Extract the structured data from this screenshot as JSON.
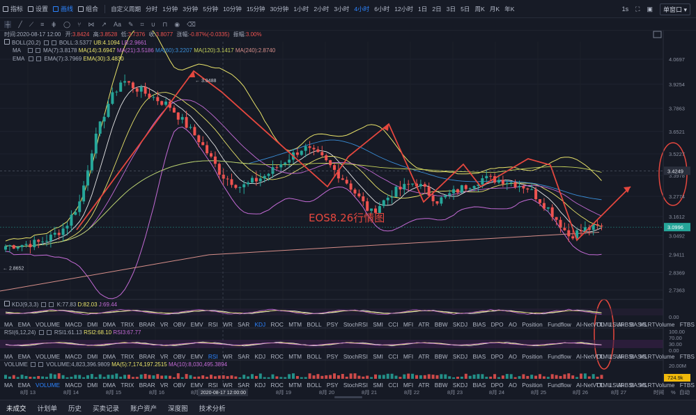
{
  "toolbar": {
    "tools": [
      {
        "label": "指标",
        "icon": "indicator-icon"
      },
      {
        "label": "设置",
        "icon": "gear-icon"
      },
      {
        "label": "画线",
        "icon": "pen-icon",
        "active": true
      },
      {
        "label": "组合",
        "icon": "layout-icon"
      }
    ],
    "periods": [
      "自定义周期",
      "分时",
      "1分钟",
      "3分钟",
      "5分钟",
      "10分钟",
      "15分钟",
      "30分钟",
      "1小时",
      "2小时",
      "3小时",
      "4小时",
      "6小时",
      "12小时",
      "1日",
      "2日",
      "3日",
      "5日",
      "周K",
      "月K",
      "年K"
    ],
    "active_period": "4小时",
    "right": {
      "interval": "1s",
      "layout": "单窗口"
    }
  },
  "drawing_tools": [
    "cursor",
    "line",
    "ray",
    "channel",
    "fib",
    "circle",
    "fork",
    "pattern",
    "arrow",
    "text",
    "brush",
    "ruler",
    "magnet",
    "lock",
    "eye",
    "trash"
  ],
  "info": {
    "time": "时间:2020-08-17 12:00",
    "open_label": "开:",
    "open": "3.8424",
    "high_label": "高:",
    "high": "3.8528",
    "low_label": "低:",
    "low": "3.7376",
    "close_label": "收:",
    "close": "3.8077",
    "change_label": "涨幅:",
    "change": "-0.87%(-0.0335)",
    "amp_label": "振幅:",
    "amp": "3.00%"
  },
  "legends": {
    "boll": {
      "name": "BOLL(20,2)",
      "v1": "BOLL:3.5377",
      "v2": "UB:4.1094",
      "v3": "LB:2.9661"
    },
    "ma": {
      "name": "MA",
      "v1": "MA(7):3.8178",
      "v2": "MA(14):3.6947",
      "v3": "MA(21):3.5186",
      "v4": "MA(60):3.2207",
      "v5": "MA(120):3.1417",
      "v6": "MA(240):2.8740"
    },
    "ema": {
      "name": "EMA",
      "v1": "EMA(7):3.7969",
      "v2": "EMA(30):3.4830"
    },
    "kdj": {
      "name": "KDJ(9,3,3)",
      "v1": "K:77.83",
      "v2": "D:82.03",
      "v3": "J:69.44"
    },
    "rsi": {
      "name": "RSI(6,12,24)",
      "v1": "RSI1:61.13",
      "v2": "RSI2:68.10",
      "v3": "RSI3:67.77"
    },
    "volume": {
      "name": "VOLUME",
      "v1": "VOLUME:4,823,396.9809",
      "v2": "MA(5):7,174,197.2515",
      "v3": "MA(10):8,030,495.3894"
    }
  },
  "price_axis": [
    "4.0697",
    "3.9254",
    "3.7863",
    "3.6521",
    "3.5227",
    "3.3978",
    "3.2774",
    "3.1612",
    "3.0492",
    "2.9411",
    "2.8369",
    "2.7363"
  ],
  "price_range": [
    2.69,
    4.17
  ],
  "current_price": "3.0996",
  "crosshair_price": "3.4249",
  "max_label": "3.9488",
  "min_label": "2.8652",
  "annotation": "EOS8.26行情图",
  "kdj_axis": [
    "0.00"
  ],
  "rsi_axis": [
    "100.00",
    "70.00",
    "30.00",
    "0.00"
  ],
  "vol_axis": [
    "20.00M"
  ],
  "vol_current": "724.9k",
  "date_axis": [
    "8月 13",
    "8月 14",
    "8月 15",
    "8月 16",
    "8月 17",
    "8月 19",
    "8月 20",
    "8月 21",
    "8月 22",
    "8月 23",
    "8月 24",
    "8月 25",
    "8月 26",
    "8月 27"
  ],
  "crosshair_date": "2020-08-17 12:00:00",
  "axis_controls": [
    "时间",
    "%",
    "自动"
  ],
  "indicator_tabs": [
    "MA",
    "EMA",
    "VOLUME",
    "MACD",
    "DMI",
    "DMA",
    "TRIX",
    "BRAR",
    "VR",
    "OBV",
    "EMV",
    "RSI",
    "WR",
    "SAR",
    "KDJ",
    "ROC",
    "MTM",
    "BOLL",
    "PSY",
    "StochRSI",
    "SMI",
    "CCI",
    "MFI",
    "ATR",
    "BBW",
    "SKDJ",
    "BIAS",
    "DPO",
    "AO",
    "Position",
    "Fundflow",
    "AI-NetVOL",
    "LSUR",
    "BASIS",
    "TVolume",
    "FTBS",
    "TTSI"
  ],
  "indicator_tabs_right": [
    "TTMU",
    "AI-BSI",
    "MLR"
  ],
  "selected_tabs_row1": [
    "KDJ"
  ],
  "selected_tabs_row2": [
    "RSI"
  ],
  "selected_tabs_row3": [
    "VOLUME"
  ],
  "bottom_tabs": [
    "未成交",
    "计划单",
    "历史",
    "买卖记录",
    "账户资产",
    "深度图",
    "技术分析"
  ],
  "colors": {
    "up": "#26a69a",
    "down": "#ef5350",
    "accent": "#2d84ff",
    "ma7": "#e8e8e8",
    "ma14": "#e9e36a",
    "ma21": "#c46bd6",
    "ma60": "#3a8fd9",
    "ma120": "#c8d45c",
    "ma240": "#d88f8a",
    "annotation": "#e5473e"
  }
}
